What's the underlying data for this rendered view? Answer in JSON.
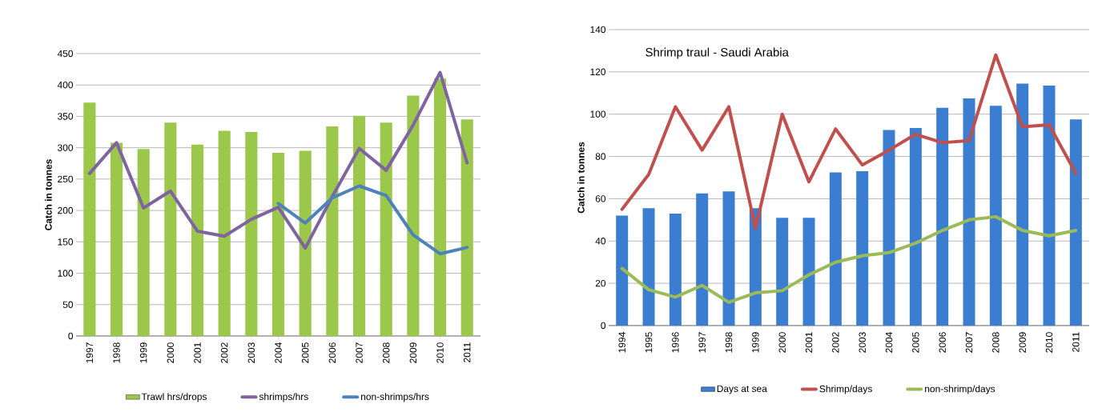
{
  "chart_data": [
    {
      "type": "bar",
      "ylabel": "Catch in tonnes",
      "categories": [
        "1997",
        "1998",
        "1999",
        "2000",
        "2001",
        "2002",
        "2003",
        "2004",
        "2005",
        "2006",
        "2007",
        "2008",
        "2009",
        "2010",
        "2011"
      ],
      "ylim": [
        0,
        450
      ],
      "yticks": [
        0,
        50,
        100,
        150,
        200,
        250,
        300,
        350,
        400,
        450
      ],
      "grid": "y",
      "legend": "bottom",
      "series": [
        {
          "name": "Trawl hrs/drops",
          "color": "#9bc84a",
          "values": [
            372,
            308,
            298,
            340,
            305,
            327,
            325,
            292,
            295,
            334,
            351,
            340,
            383,
            410,
            345
          ]
        },
        {
          "name": "shrimps/hrs",
          "type": "line",
          "color": "#8064a2",
          "values": [
            259,
            308,
            204,
            231,
            167,
            159,
            186,
            205,
            140,
            222,
            299,
            264,
            336,
            420,
            276
          ]
        },
        {
          "name": "non-shrimps/hrs",
          "type": "line",
          "color": "#4f81bd",
          "values": [
            null,
            null,
            null,
            null,
            null,
            null,
            null,
            211,
            180,
            220,
            239,
            224,
            161,
            131,
            141
          ]
        }
      ]
    },
    {
      "type": "bar",
      "ylabel": "Catch in tonnes",
      "annotations": [
        "Shrimp traul - Saudi Arabia"
      ],
      "categories": [
        "1994",
        "1995",
        "1996",
        "1997",
        "1998",
        "1999",
        "2000",
        "2001",
        "2002",
        "2003",
        "2004",
        "2005",
        "2006",
        "2007",
        "2008",
        "2009",
        "2010",
        "2011"
      ],
      "ylim": [
        0,
        140
      ],
      "yticks": [
        0,
        20,
        40,
        60,
        80,
        100,
        120,
        140
      ],
      "grid": "y",
      "legend": "bottom",
      "series": [
        {
          "name": "Days at sea",
          "color": "#3b7dd0",
          "values": [
            52,
            55.5,
            53,
            62.5,
            63.5,
            55.5,
            51,
            51,
            72.5,
            73,
            92.5,
            93.5,
            103,
            107.5,
            104,
            114.5,
            113.5,
            97.5
          ]
        },
        {
          "name": "Shrimp/days",
          "type": "line",
          "color": "#c0504d",
          "values": [
            55,
            71.5,
            103.5,
            83,
            103.5,
            46,
            100,
            68,
            93,
            76,
            83,
            90.5,
            86.5,
            87.5,
            128,
            94,
            95,
            72
          ]
        },
        {
          "name": "non-shrimp/days",
          "type": "line",
          "color": "#9bbb59",
          "values": [
            27,
            17,
            13.5,
            19,
            11,
            15.5,
            16.5,
            24,
            30,
            33,
            34.5,
            39,
            45,
            50,
            51.5,
            45,
            42.5,
            45
          ]
        }
      ]
    }
  ]
}
